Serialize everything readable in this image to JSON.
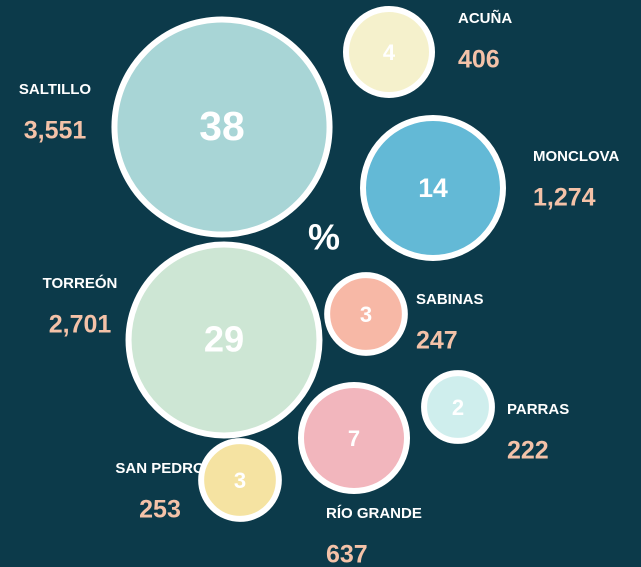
{
  "chart_data": {
    "type": "bubble",
    "unit": "%",
    "categories": [
      "SALTILLO",
      "ACUÑA",
      "MONCLOVA",
      "TORREÓN",
      "SABINAS",
      "PARRAS",
      "RÍO GRANDE",
      "SAN PEDRO"
    ],
    "values": [
      38,
      4,
      14,
      29,
      3,
      2,
      7,
      3
    ],
    "counts": [
      3551,
      406,
      1274,
      2701,
      247,
      222,
      637,
      253
    ],
    "count_labels": [
      "3,551",
      "406",
      "1,274",
      "2,701",
      "247",
      "222",
      "637",
      "253"
    ],
    "colors": [
      "#a8d5d6",
      "#f5f1cc",
      "#63b9d6",
      "#cde6d4",
      "#f7b8a6",
      "#cfeeed",
      "#f2b6bd",
      "#f5e3a2"
    ]
  }
}
